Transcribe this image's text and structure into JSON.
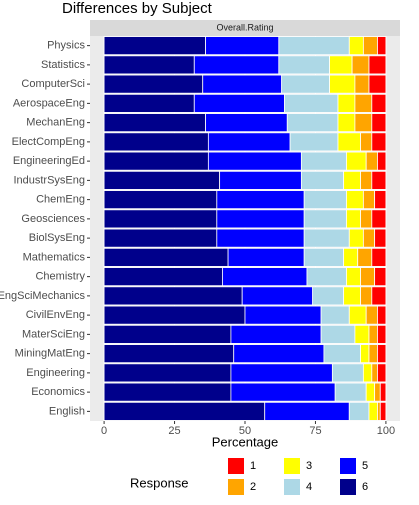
{
  "chart_data": {
    "type": "stacked_barh",
    "title": "Differences by Subject",
    "facet": "Overall.Rating",
    "x_label": "Percentage",
    "legend_title": "Response",
    "categories": [
      "Physics",
      "Statistics",
      "ComputerSci",
      "AerospaceEng",
      "MechanEng",
      "ElectCompEng",
      "EngineeringEd",
      "IndustrSysEng",
      "ChemEng",
      "Geosciences",
      "BiolSysEng",
      "Mathematics",
      "Chemistry",
      "EngSciMechanics",
      "CivilEnvEng",
      "MaterSciEng",
      "MiningMatEng",
      "Engineering",
      "Economics",
      "English"
    ],
    "series": [
      {
        "name": "1",
        "color": "#ff0000",
        "values": [
          3,
          6,
          6,
          5,
          5,
          5,
          3,
          5,
          4,
          5,
          4,
          5,
          4,
          5,
          3,
          3,
          3,
          3,
          2,
          2
        ]
      },
      {
        "name": "2",
        "color": "#ffa500",
        "values": [
          5,
          6,
          5,
          6,
          6,
          4,
          4,
          4,
          4,
          4,
          4,
          5,
          5,
          4,
          4,
          3,
          3,
          2,
          2,
          1
        ]
      },
      {
        "name": "3",
        "color": "#ffff00",
        "values": [
          5,
          8,
          9,
          6,
          6,
          8,
          7,
          6,
          6,
          5,
          5,
          5,
          5,
          6,
          6,
          5,
          3,
          3,
          3,
          3
        ]
      },
      {
        "name": "4",
        "color": "#add8e6",
        "values": [
          25,
          18,
          17,
          19,
          18,
          17,
          16,
          15,
          15,
          15,
          16,
          14,
          14,
          11,
          10,
          12,
          13,
          11,
          11,
          7
        ]
      },
      {
        "name": "5",
        "color": "#0000ff",
        "values": [
          26,
          30,
          28,
          32,
          29,
          29,
          33,
          29,
          31,
          31,
          31,
          27,
          30,
          25,
          27,
          32,
          32,
          36,
          37,
          30
        ]
      },
      {
        "name": "6",
        "color": "#00008b",
        "values": [
          36,
          32,
          35,
          32,
          36,
          37,
          37,
          41,
          40,
          40,
          40,
          44,
          42,
          49,
          50,
          45,
          46,
          45,
          45,
          57
        ]
      }
    ],
    "xlim": [
      -5,
      105
    ],
    "xticks": [
      0,
      25,
      50,
      75,
      100
    ],
    "grid": true
  }
}
